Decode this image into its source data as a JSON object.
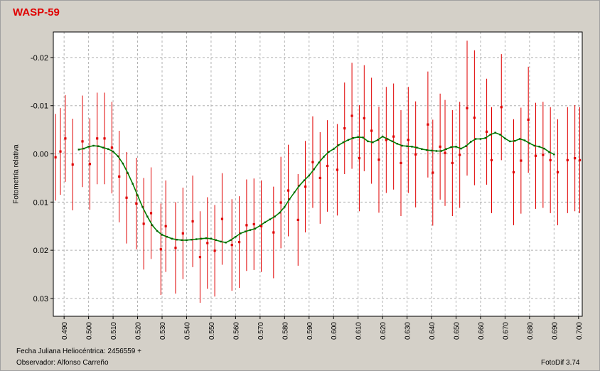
{
  "title": "WASP-59",
  "footer": {
    "date_label": "Fecha Juliana Heliocéntrica: 2456559 +",
    "observer_label": "Observador: Alfonso Carreño",
    "software": "FotoDif 3.74"
  },
  "colors": {
    "background": "#d4d0c8",
    "plot_bg": "#ffffff",
    "points": "#e00000",
    "errorbars": "#e00000",
    "fit_line": "#008000",
    "grid": "#b0b0b0",
    "title": "#e00000"
  },
  "chart_data": {
    "type": "scatter",
    "title": "WASP-59",
    "xlabel": "Fecha Juliana Heliocéntrica: 2456559 +",
    "ylabel": "Fotometría relativa",
    "xlim": [
      0.4856,
      0.7015
    ],
    "ylim": [
      -0.0253,
      0.0337
    ],
    "y_inverted": true,
    "grid": true,
    "x_ticks": [
      "0.490",
      "0.500",
      "0.510",
      "0.520",
      "0.530",
      "0.540",
      "0.550",
      "0.560",
      "0.570",
      "0.580",
      "0.590",
      "0.600",
      "0.610",
      "0.620",
      "0.630",
      "0.640",
      "0.650",
      "0.660",
      "0.670",
      "0.680",
      "0.690",
      "0.700"
    ],
    "y_ticks": [
      "-0.02",
      "-0.01",
      "0.00",
      "0.01",
      "0.02",
      "0.03"
    ],
    "series": [
      {
        "kind": "points_with_errorbars",
        "x": [
          0.4865,
          0.4885,
          0.4905,
          0.4935,
          0.4975,
          0.5005,
          0.5035,
          0.5065,
          0.5095,
          0.5125,
          0.5155,
          0.5195,
          0.5225,
          0.5255,
          0.5295,
          0.5315,
          0.5355,
          0.5385,
          0.5425,
          0.5455,
          0.5485,
          0.5515,
          0.5545,
          0.5585,
          0.5615,
          0.5645,
          0.5675,
          0.5705,
          0.5755,
          0.5785,
          0.5815,
          0.5855,
          0.5885,
          0.5915,
          0.5945,
          0.5975,
          0.6015,
          0.6045,
          0.6075,
          0.6105,
          0.6125,
          0.6155,
          0.6185,
          0.6215,
          0.6245,
          0.6275,
          0.6305,
          0.6335,
          0.6385,
          0.6405,
          0.6435,
          0.6455,
          0.6485,
          0.6515,
          0.6545,
          0.6575,
          0.6625,
          0.6645,
          0.6685,
          0.6735,
          0.6765,
          0.6795,
          0.6825,
          0.6855,
          0.6885,
          0.6915,
          0.6955,
          0.6985,
          0.7005
        ],
        "y": [
          0.0007,
          -0.0005,
          -0.0032,
          0.0022,
          -0.0026,
          0.0021,
          -0.0032,
          -0.0032,
          -0.0013,
          0.0047,
          0.0091,
          0.0103,
          0.0145,
          0.0123,
          0.0198,
          0.015,
          0.0195,
          0.0165,
          0.014,
          0.0214,
          0.0185,
          0.0201,
          0.0135,
          0.0189,
          0.0183,
          0.0148,
          0.0146,
          0.015,
          0.0163,
          0.0101,
          0.0076,
          0.0137,
          0.0068,
          0.0017,
          0.005,
          0.0025,
          0.0033,
          -0.0053,
          -0.0079,
          0.0009,
          -0.0074,
          -0.0048,
          0.0012,
          -0.0029,
          -0.0036,
          0.0019,
          -0.0029,
          0.0001,
          -0.0061,
          0.0039,
          -0.0015,
          -0.0002,
          0.0019,
          0.0002,
          -0.0095,
          -0.0075,
          -0.0046,
          0.0013,
          -0.0097,
          0.0038,
          0.0014,
          -0.0071,
          0.0004,
          0.0002,
          0.0013,
          0.0038,
          0.0013,
          0.0009,
          0.0013
        ],
        "err": [
          0.009,
          0.009,
          0.009,
          0.0095,
          0.0095,
          0.0095,
          0.0095,
          0.0095,
          0.0095,
          0.0095,
          0.0095,
          0.0095,
          0.0095,
          0.0095,
          0.0095,
          0.0095,
          0.0095,
          0.0095,
          0.0095,
          0.0095,
          0.0095,
          0.0095,
          0.0095,
          0.0095,
          0.0095,
          0.0095,
          0.0095,
          0.0095,
          0.0095,
          0.0095,
          0.0095,
          0.0095,
          0.0095,
          0.0095,
          0.0095,
          0.0095,
          0.0095,
          0.0095,
          0.011,
          0.011,
          0.011,
          0.011,
          0.011,
          0.011,
          0.011,
          0.011,
          0.011,
          0.011,
          0.011,
          0.011,
          0.011,
          0.011,
          0.011,
          0.011,
          0.014,
          0.014,
          0.011,
          0.011,
          0.011,
          0.011,
          0.011,
          0.011,
          0.011,
          0.011,
          0.011,
          0.011,
          0.011,
          0.011,
          0.011
        ]
      },
      {
        "kind": "smoothed_line",
        "x": [
          0.496,
          0.498,
          0.5,
          0.502,
          0.504,
          0.506,
          0.508,
          0.51,
          0.512,
          0.514,
          0.516,
          0.518,
          0.52,
          0.522,
          0.524,
          0.526,
          0.528,
          0.53,
          0.532,
          0.534,
          0.536,
          0.538,
          0.54,
          0.542,
          0.544,
          0.546,
          0.548,
          0.55,
          0.552,
          0.554,
          0.556,
          0.558,
          0.56,
          0.562,
          0.564,
          0.566,
          0.568,
          0.57,
          0.572,
          0.574,
          0.576,
          0.578,
          0.58,
          0.582,
          0.584,
          0.586,
          0.588,
          0.59,
          0.592,
          0.594,
          0.596,
          0.598,
          0.6,
          0.602,
          0.604,
          0.606,
          0.608,
          0.61,
          0.612,
          0.614,
          0.616,
          0.618,
          0.62,
          0.622,
          0.624,
          0.626,
          0.628,
          0.63,
          0.632,
          0.634,
          0.636,
          0.638,
          0.64,
          0.642,
          0.644,
          0.646,
          0.648,
          0.65,
          0.652,
          0.654,
          0.656,
          0.658,
          0.66,
          0.662,
          0.664,
          0.666,
          0.668,
          0.67,
          0.672,
          0.674,
          0.676,
          0.678,
          0.68,
          0.682,
          0.684,
          0.686,
          0.688,
          0.69
        ],
        "y": [
          -0.0009,
          -0.0011,
          -0.0015,
          -0.0017,
          -0.0016,
          -0.0013,
          -0.001,
          -0.0005,
          0.0005,
          0.002,
          0.004,
          0.0062,
          0.0086,
          0.011,
          0.013,
          0.0148,
          0.016,
          0.0168,
          0.0172,
          0.0176,
          0.0178,
          0.0179,
          0.0179,
          0.0178,
          0.0177,
          0.0176,
          0.0175,
          0.0176,
          0.0179,
          0.0182,
          0.0184,
          0.0179,
          0.0172,
          0.0165,
          0.0161,
          0.0158,
          0.0155,
          0.0149,
          0.0142,
          0.0136,
          0.013,
          0.0122,
          0.011,
          0.0094,
          0.008,
          0.0066,
          0.0055,
          0.0045,
          0.0032,
          0.0018,
          0.0006,
          -0.0004,
          -0.001,
          -0.0018,
          -0.0024,
          -0.0029,
          -0.0033,
          -0.0035,
          -0.0034,
          -0.0026,
          -0.0024,
          -0.0029,
          -0.0036,
          -0.0031,
          -0.0026,
          -0.0021,
          -0.0017,
          -0.0016,
          -0.0015,
          -0.0013,
          -0.001,
          -0.0008,
          -0.0007,
          -0.0006,
          -0.0006,
          -0.001,
          -0.0014,
          -0.0015,
          -0.0011,
          -0.0016,
          -0.0025,
          -0.0031,
          -0.0031,
          -0.0033,
          -0.004,
          -0.0044,
          -0.004,
          -0.0032,
          -0.0026,
          -0.0027,
          -0.0031,
          -0.0028,
          -0.0022,
          -0.0017,
          -0.0015,
          -0.0011,
          -0.0004,
          0.0001
        ]
      }
    ]
  }
}
